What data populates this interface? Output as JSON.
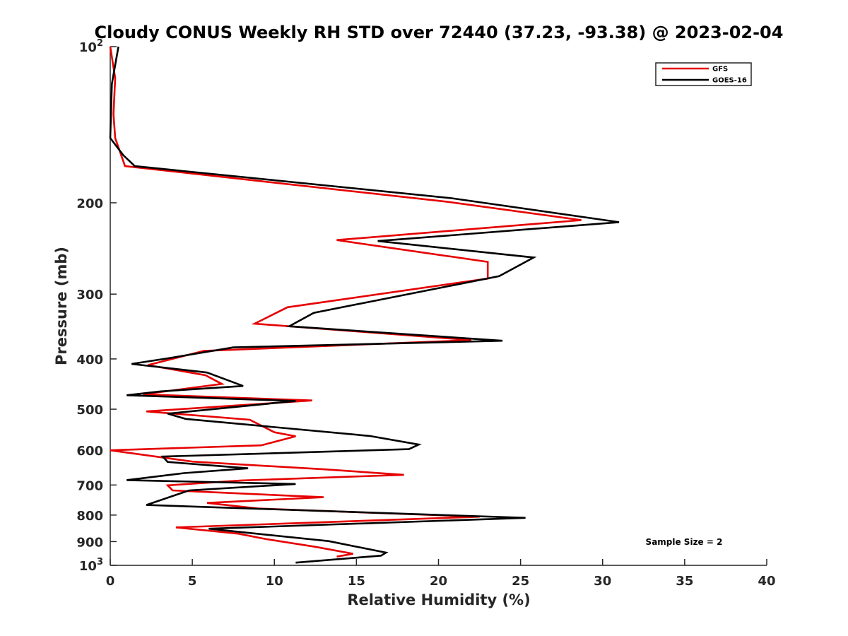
{
  "chart_data": {
    "type": "line",
    "title": "Cloudy CONUS Weekly RH STD over 72440 (37.23, -93.38) @ 2023-02-04",
    "xlabel": "Relative Humidity (%)",
    "ylabel": "Pressure (mb)",
    "xlim": [
      0,
      40
    ],
    "ylim": [
      100,
      1000
    ],
    "yscale": "log",
    "y_reversed": true,
    "grid": false,
    "legend_position": "top-right",
    "x_ticks": [
      "0",
      "5",
      "10",
      "15",
      "20",
      "25",
      "30",
      "35",
      "40"
    ],
    "y_ticks": [
      {
        "value": 100,
        "base": "10",
        "exp": "2"
      },
      {
        "value": 200,
        "label": "200"
      },
      {
        "value": 300,
        "label": "300"
      },
      {
        "value": 400,
        "label": "400"
      },
      {
        "value": 500,
        "label": "500"
      },
      {
        "value": 600,
        "label": "600"
      },
      {
        "value": 700,
        "label": "700"
      },
      {
        "value": 800,
        "label": "800"
      },
      {
        "value": 900,
        "label": "900"
      },
      {
        "value": 1000,
        "base": "10",
        "exp": "3"
      }
    ],
    "annotation": "Sample Size = 2",
    "series": [
      {
        "name": "GFS",
        "color": "#e60000",
        "points": [
          [
            0.0,
            100
          ],
          [
            0.3,
            115
          ],
          [
            0.2,
            135
          ],
          [
            0.3,
            150
          ],
          [
            0.9,
            170
          ],
          [
            20.5,
            199
          ],
          [
            28.7,
            216
          ],
          [
            13.8,
            236
          ],
          [
            23.0,
            260
          ],
          [
            23.0,
            280
          ],
          [
            10.8,
            318
          ],
          [
            8.8,
            342
          ],
          [
            22.0,
            368
          ],
          [
            5.7,
            386
          ],
          [
            2.3,
            411
          ],
          [
            5.8,
            430
          ],
          [
            6.8,
            447
          ],
          [
            2.0,
            468
          ],
          [
            12.3,
            481
          ],
          [
            2.2,
            505
          ],
          [
            8.5,
            524
          ],
          [
            10.0,
            554
          ],
          [
            11.3,
            564
          ],
          [
            9.2,
            587
          ],
          [
            0.0,
            600
          ],
          [
            5.0,
            631
          ],
          [
            13.0,
            653
          ],
          [
            17.9,
            669
          ],
          [
            8.0,
            686
          ],
          [
            3.5,
            701
          ],
          [
            3.8,
            717
          ],
          [
            13.0,
            739
          ],
          [
            5.9,
            758
          ],
          [
            9.0,
            777
          ],
          [
            22.5,
            806
          ],
          [
            4.0,
            845
          ],
          [
            7.8,
            869
          ],
          [
            9.5,
            890
          ],
          [
            12.5,
            921
          ],
          [
            14.8,
            950
          ],
          [
            13.8,
            962
          ]
        ]
      },
      {
        "name": "GOES-16",
        "color": "#000000",
        "points": [
          [
            0.5,
            100
          ],
          [
            0.1,
            118
          ],
          [
            0.0,
            150
          ],
          [
            0.8,
            162
          ],
          [
            1.5,
            170
          ],
          [
            20.8,
            196
          ],
          [
            31.0,
            218
          ],
          [
            16.3,
            237
          ],
          [
            25.8,
            255
          ],
          [
            23.7,
            277
          ],
          [
            12.4,
            326
          ],
          [
            10.9,
            346
          ],
          [
            23.9,
            369
          ],
          [
            7.5,
            380
          ],
          [
            3.5,
            399
          ],
          [
            1.3,
            409
          ],
          [
            5.9,
            425
          ],
          [
            8.1,
            451
          ],
          [
            3.1,
            462
          ],
          [
            1.0,
            470
          ],
          [
            11.3,
            482
          ],
          [
            3.5,
            510
          ],
          [
            4.6,
            522
          ],
          [
            15.8,
            563
          ],
          [
            18.8,
            585
          ],
          [
            18.2,
            597
          ],
          [
            3.2,
            617
          ],
          [
            3.5,
            632
          ],
          [
            8.4,
            650
          ],
          [
            4.5,
            664
          ],
          [
            1.0,
            685
          ],
          [
            11.3,
            697
          ],
          [
            4.8,
            717
          ],
          [
            2.2,
            765
          ],
          [
            25.3,
            810
          ],
          [
            6.0,
            850
          ],
          [
            13.3,
            898
          ],
          [
            16.8,
            945
          ],
          [
            16.5,
            958
          ],
          [
            11.3,
            988
          ]
        ]
      }
    ]
  }
}
